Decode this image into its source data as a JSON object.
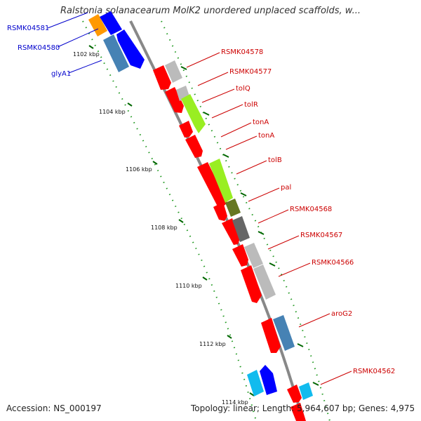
{
  "title": "Ralstonia solanacearum MolK2 unordered unplaced scaffolds, w...",
  "footer": {
    "accession": "Accession: NS_000197",
    "topology": "Topology: linear; Length: 5,964,607 bp; Genes: 4,975"
  },
  "colors": {
    "red": "#ff0000",
    "blue": "#0000ff",
    "steel": "#4682b4",
    "lime": "#99ee22",
    "olive": "#667722",
    "gray": "#666666",
    "lightgray": "#bbbbbb",
    "cyan": "#11bbee",
    "orange": "#ff9900",
    "tick": "#006600"
  },
  "scale_ticks": [
    {
      "label": "1102 kbp"
    },
    {
      "label": "1104 kbp"
    },
    {
      "label": "1106 kbp"
    },
    {
      "label": "1108 kbp"
    },
    {
      "label": "1110 kbp"
    },
    {
      "label": "1112 kbp"
    },
    {
      "label": "1114 kbp"
    }
  ],
  "genes": [
    {
      "name": "RSMK04581",
      "strand": "left",
      "color": "blue"
    },
    {
      "name": "RSMK04580",
      "strand": "left",
      "color": "blue"
    },
    {
      "name": "glyA1",
      "strand": "left",
      "color": "blue"
    },
    {
      "name": "RSMK04578",
      "strand": "right",
      "color": "red"
    },
    {
      "name": "RSMK04577",
      "strand": "right",
      "color": "red"
    },
    {
      "name": "tolQ",
      "strand": "right",
      "color": "red"
    },
    {
      "name": "tolR",
      "strand": "right",
      "color": "red"
    },
    {
      "name": "tonA",
      "strand": "right",
      "color": "red"
    },
    {
      "name": "tonA",
      "strand": "right",
      "color": "red"
    },
    {
      "name": "tolB",
      "strand": "right",
      "color": "red"
    },
    {
      "name": "pal",
      "strand": "right",
      "color": "red"
    },
    {
      "name": "RSMK04568",
      "strand": "right",
      "color": "red"
    },
    {
      "name": "RSMK04567",
      "strand": "right",
      "color": "red"
    },
    {
      "name": "RSMK04566",
      "strand": "right",
      "color": "red"
    },
    {
      "name": "aroG2",
      "strand": "right",
      "color": "red"
    },
    {
      "name": "RSMK04562",
      "strand": "right",
      "color": "red"
    }
  ]
}
